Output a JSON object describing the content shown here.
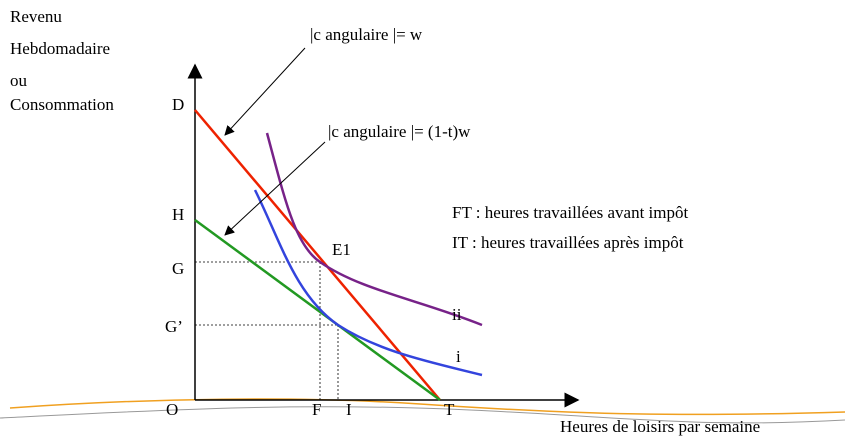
{
  "y_axis_label": [
    "Revenu",
    "Hebdomadaire",
    "ou",
    "Consommation"
  ],
  "x_axis_label": "Heures de loisirs par semaine",
  "annotations": {
    "slope_w": "|c angulaire |= w",
    "slope_tw": "|c angulaire |= (1-t)w"
  },
  "legend": [
    "FT : heures travaillées avant impôt",
    "IT : heures travaillées après impôt"
  ],
  "points": {
    "D": "D",
    "H": "H",
    "G": "G",
    "G2": "G’",
    "O": "O",
    "F": "F",
    "I": "I",
    "T": "T",
    "E1": "E1"
  },
  "curves": {
    "ii": "ii",
    "i": "i"
  }
}
